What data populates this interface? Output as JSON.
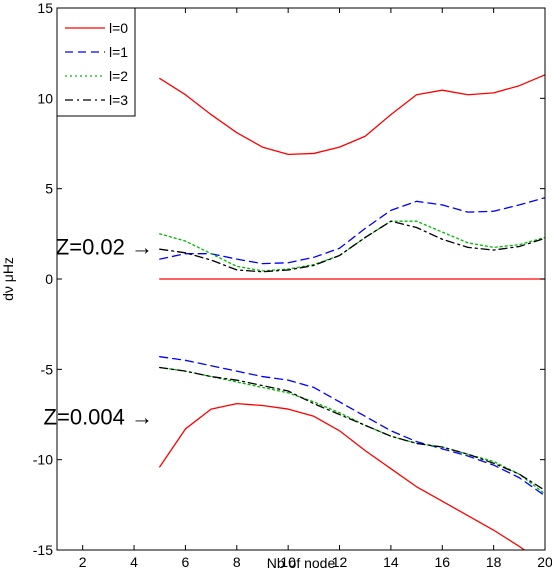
{
  "chart_data": {
    "type": "line",
    "title": "",
    "xlabel": "Nb of node",
    "ylabel": "dν μHz",
    "xlim": [
      1,
      20
    ],
    "ylim": [
      -15,
      15
    ],
    "x_ticks": [
      2,
      4,
      6,
      8,
      10,
      12,
      14,
      16,
      18,
      20
    ],
    "y_ticks": [
      -15,
      -10,
      -5,
      0,
      5,
      10,
      15
    ],
    "grid": false,
    "legend_position": "top-left",
    "annotations": [
      {
        "text": "Z=0.02 →",
        "target_value_y": 1.8
      },
      {
        "text": "Z=0.004 →",
        "target_value_y": -7.6
      }
    ],
    "series": [
      {
        "name": "l=0",
        "color": "#ff0000",
        "dash": "solid",
        "groups": [
          {
            "label": "upper",
            "x": [
              5,
              6,
              7,
              8,
              9,
              10,
              11,
              12,
              13,
              14,
              15,
              16,
              17,
              18,
              19,
              20
            ],
            "y": [
              11.1,
              10.2,
              9.1,
              8.1,
              7.3,
              6.9,
              6.95,
              7.3,
              7.9,
              9.1,
              10.2,
              10.45,
              10.2,
              10.3,
              10.7,
              11.3
            ]
          },
          {
            "label": "middle",
            "x": [
              5,
              20
            ],
            "y": [
              0,
              0
            ]
          },
          {
            "label": "lower",
            "x": [
              5,
              6,
              7,
              8,
              9,
              10,
              11,
              12,
              13,
              14,
              15,
              16,
              17,
              18,
              19,
              20
            ],
            "y": [
              -10.4,
              -8.3,
              -7.2,
              -6.9,
              -7.0,
              -7.2,
              -7.6,
              -8.4,
              -9.5,
              -10.5,
              -11.5,
              -12.3,
              -13.1,
              -13.9,
              -14.8,
              -15.8
            ]
          }
        ]
      },
      {
        "name": "l=1",
        "color": "#0000ff",
        "dash": "dashed",
        "groups": [
          {
            "label": "upper",
            "x": [
              5,
              6,
              7,
              8,
              9,
              10,
              11,
              12,
              13,
              14,
              15,
              16,
              17,
              18,
              19,
              20
            ],
            "y": [
              1.1,
              1.4,
              1.4,
              1.1,
              0.85,
              0.9,
              1.2,
              1.7,
              2.8,
              3.8,
              4.3,
              4.1,
              3.7,
              3.75,
              4.1,
              4.5
            ]
          },
          {
            "label": "lower",
            "x": [
              5,
              6,
              7,
              8,
              9,
              10,
              11,
              12,
              13,
              14,
              15,
              16,
              17,
              18,
              19,
              20
            ],
            "y": [
              -4.3,
              -4.5,
              -4.8,
              -5.1,
              -5.4,
              -5.6,
              -6.0,
              -6.8,
              -7.6,
              -8.4,
              -9.0,
              -9.4,
              -9.8,
              -10.3,
              -11.0,
              -12.0
            ]
          }
        ]
      },
      {
        "name": "l=2",
        "color": "#00bb00",
        "dash": "dotted",
        "groups": [
          {
            "label": "upper",
            "x": [
              5,
              6,
              7,
              8,
              9,
              10,
              11,
              12,
              13,
              14,
              15,
              16,
              17,
              18,
              19,
              20
            ],
            "y": [
              2.5,
              2.1,
              1.4,
              0.7,
              0.45,
              0.55,
              0.8,
              1.3,
              2.3,
              3.2,
              3.2,
              2.6,
              2.0,
              1.75,
              1.9,
              2.3
            ]
          },
          {
            "label": "lower",
            "x": [
              5,
              6,
              7,
              8,
              9,
              10,
              11,
              12,
              13,
              14,
              15,
              16,
              17,
              18,
              19,
              20
            ],
            "y": [
              -4.9,
              -5.1,
              -5.4,
              -5.7,
              -6.0,
              -6.3,
              -6.8,
              -7.4,
              -8.1,
              -8.7,
              -9.1,
              -9.3,
              -9.7,
              -10.1,
              -10.8,
              -11.9
            ]
          }
        ]
      },
      {
        "name": "l=3",
        "color": "#000000",
        "dash": "dashdot",
        "groups": [
          {
            "label": "upper",
            "x": [
              5,
              6,
              7,
              8,
              9,
              10,
              11,
              12,
              13,
              14,
              15,
              16,
              17,
              18,
              19,
              20
            ],
            "y": [
              1.65,
              1.45,
              1.05,
              0.5,
              0.4,
              0.5,
              0.75,
              1.3,
              2.3,
              3.2,
              2.85,
              2.2,
              1.75,
              1.6,
              1.8,
              2.25
            ]
          },
          {
            "label": "lower",
            "x": [
              5,
              6,
              7,
              8,
              9,
              10,
              11,
              12,
              13,
              14,
              15,
              16,
              17,
              18,
              19,
              20
            ],
            "y": [
              -4.9,
              -5.1,
              -5.4,
              -5.6,
              -5.9,
              -6.2,
              -6.9,
              -7.5,
              -8.1,
              -8.7,
              -9.1,
              -9.3,
              -9.7,
              -10.2,
              -10.8,
              -11.7
            ]
          }
        ]
      }
    ]
  }
}
